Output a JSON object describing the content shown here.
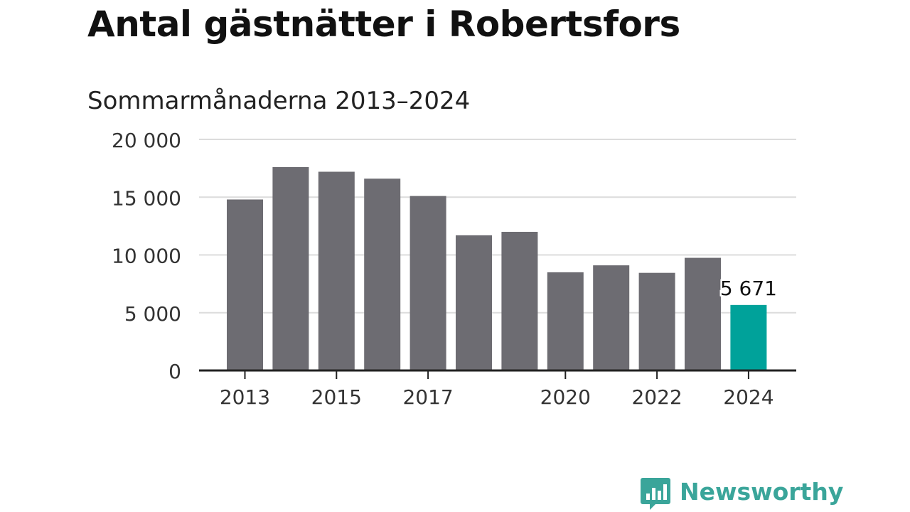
{
  "title": "Antal gästnätter i Robertsfors",
  "subtitle": "Sommarmånaderna 2013–2024",
  "brand": {
    "name": "Newsworthy",
    "icon": "bar-chart-speech-bubble-icon",
    "color": "#3aa59a"
  },
  "colors": {
    "bar": "#6d6c72",
    "highlight": "#00a29a",
    "grid": "#dcdcdc",
    "axis": "#222222"
  },
  "chart_data": {
    "type": "bar",
    "categories": [
      "2013",
      "2014",
      "2015",
      "2016",
      "2017",
      "2018",
      "2019",
      "2020",
      "2021",
      "2022",
      "2023",
      "2024"
    ],
    "values": [
      14800,
      17600,
      17200,
      16600,
      15100,
      11700,
      12000,
      8500,
      9100,
      8450,
      9750,
      5671
    ],
    "x_tick_labels": [
      "2013",
      "",
      "2015",
      "",
      "2017",
      "",
      "",
      "2020",
      "",
      "2022",
      "",
      "2024"
    ],
    "y_ticks": [
      0,
      5000,
      10000,
      15000,
      20000
    ],
    "y_tick_labels": [
      "0",
      "5 000",
      "10 000",
      "15 000",
      "20 000"
    ],
    "ylim": [
      0,
      20000
    ],
    "highlight_index": 11,
    "data_labels": [
      {
        "index": 11,
        "text": "5 671"
      }
    ],
    "title": "Antal gästnätter i Robertsfors",
    "subtitle": "Sommarmånaderna 2013–2024",
    "xlabel": "",
    "ylabel": "",
    "grid": "horizontal",
    "legend": "none"
  }
}
